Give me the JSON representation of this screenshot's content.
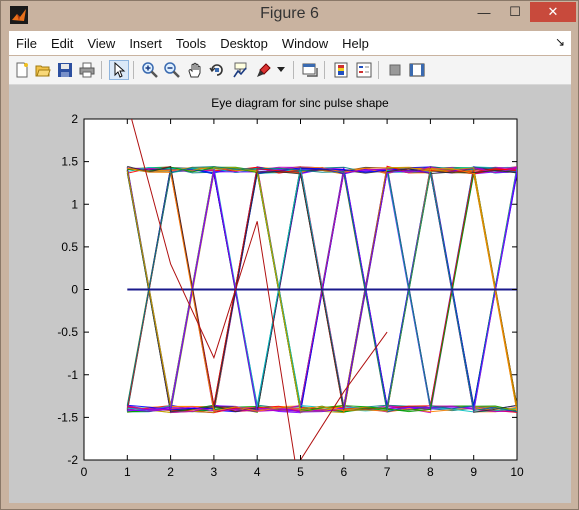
{
  "window": {
    "title": "Figure 6",
    "min_glyph": "—",
    "max_glyph": "☐",
    "close_glyph": "✕"
  },
  "menu": {
    "items": [
      "File",
      "Edit",
      "View",
      "Insert",
      "Tools",
      "Desktop",
      "Window",
      "Help"
    ],
    "dock_glyph": "↘"
  },
  "toolbar": {
    "buttons": [
      "new-figure-icon",
      "open-file-icon",
      "save-figure-icon",
      "print-figure-icon",
      "edit-plot-arrow-icon",
      "zoom-in-icon",
      "zoom-out-icon",
      "pan-hand-icon",
      "rotate-3d-icon",
      "data-cursor-icon",
      "brush-icon",
      "brush-dropdown-icon",
      "link-plot-icon",
      "insert-colorbar-icon",
      "insert-legend-icon",
      "hide-plot-tools-icon",
      "show-plot-tools-icon"
    ],
    "active": "edit-plot-arrow-icon"
  },
  "chart_data": {
    "type": "line",
    "title": "Eye diagram for sinc pulse shape",
    "xlabel": "",
    "ylabel": "",
    "xlim": [
      0,
      10
    ],
    "ylim": [
      -2,
      2
    ],
    "xticks": [
      "0",
      "1",
      "2",
      "3",
      "4",
      "5",
      "6",
      "7",
      "8",
      "9",
      "10"
    ],
    "yticks": [
      "2",
      "1.5",
      "1",
      "0.5",
      "0",
      "-0.5",
      "-1",
      "-1.5",
      "-2"
    ],
    "grid": false,
    "description": "eye diagram traces",
    "eye_levels": [
      1.4,
      -1.4
    ],
    "crossing_points_x": [
      1.5,
      2.5,
      3.5,
      4.5,
      5.5,
      6.5,
      7.5,
      8.5,
      9.5
    ],
    "symbol_period": 1,
    "zero_line": {
      "x": [
        1,
        10
      ],
      "y": [
        0,
        0
      ],
      "color": "#1a1a8c"
    },
    "outlier_trace": {
      "x": [
        1.1,
        2,
        3,
        4,
        4.9,
        5,
        6,
        7
      ],
      "y": [
        2.0,
        0.3,
        -0.8,
        0.8,
        -2.1,
        -2.0,
        -1.2,
        -0.5
      ],
      "color": "#b01010"
    },
    "trace_colors": [
      "#0000ff",
      "#00a000",
      "#ff0000",
      "#00c0c0",
      "#c000c0",
      "#c0a000",
      "#303030",
      "#8000ff",
      "#ff8000",
      "#008080"
    ]
  }
}
